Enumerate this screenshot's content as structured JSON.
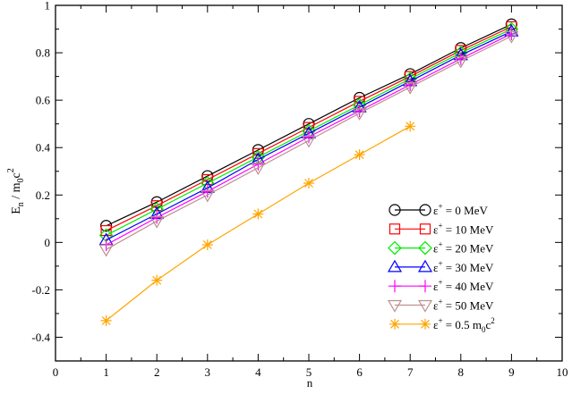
{
  "chart_data": {
    "type": "line",
    "xlabel": "n",
    "ylabel": {
      "main": "E",
      "sub": "n",
      "mid": " / m",
      "sub2": "0",
      "end": "c",
      "sup": "2"
    },
    "xlim": [
      0,
      10
    ],
    "ylim": [
      -0.5,
      1
    ],
    "xticks": [
      0,
      1,
      2,
      3,
      4,
      5,
      6,
      7,
      8,
      9,
      10
    ],
    "yticks": [
      -0.4,
      -0.2,
      0,
      0.2,
      0.4,
      0.6,
      0.8,
      1
    ],
    "xtick_labels": [
      "0",
      "1",
      "2",
      "3",
      "4",
      "5",
      "6",
      "7",
      "8",
      "9",
      "10"
    ],
    "ytick_labels": [
      "-0.4",
      "-0.2",
      "0",
      "0.2",
      "0.4",
      "0.6",
      "0.8",
      "1"
    ],
    "grid": false,
    "legend_position": "bottom-right",
    "series": [
      {
        "name": "= 0 MeV",
        "symbol": "circle",
        "color": "#000000",
        "x": [
          1,
          2,
          3,
          4,
          5,
          6,
          7,
          8,
          9
        ],
        "y": [
          0.07,
          0.17,
          0.28,
          0.39,
          0.5,
          0.61,
          0.71,
          0.82,
          0.92
        ]
      },
      {
        "name": "= 10 MeV",
        "symbol": "square",
        "color": "#ff0000",
        "x": [
          1,
          2,
          3,
          4,
          5,
          6,
          7,
          8,
          9
        ],
        "y": [
          0.05,
          0.155,
          0.265,
          0.375,
          0.485,
          0.595,
          0.7,
          0.81,
          0.91
        ]
      },
      {
        "name": "= 20 MeV",
        "symbol": "diamond",
        "color": "#00ee00",
        "x": [
          1,
          2,
          3,
          4,
          5,
          6,
          7,
          8,
          9
        ],
        "y": [
          0.03,
          0.14,
          0.25,
          0.36,
          0.47,
          0.58,
          0.69,
          0.8,
          0.9
        ]
      },
      {
        "name": "= 30 MeV",
        "symbol": "triangle-up",
        "color": "#0000ff",
        "x": [
          1,
          2,
          3,
          4,
          5,
          6,
          7,
          8,
          9
        ],
        "y": [
          0.01,
          0.12,
          0.23,
          0.35,
          0.46,
          0.57,
          0.68,
          0.79,
          0.89
        ]
      },
      {
        "name": "= 40 MeV",
        "symbol": "plus",
        "color": "#ff00ff",
        "x": [
          1,
          2,
          3,
          4,
          5,
          6,
          7,
          8,
          9
        ],
        "y": [
          -0.01,
          0.105,
          0.215,
          0.33,
          0.445,
          0.555,
          0.665,
          0.775,
          0.88
        ]
      },
      {
        "name": "= 50 MeV",
        "symbol": "triangle-down",
        "color": "#bc8f8f",
        "x": [
          1,
          2,
          3,
          4,
          5,
          6,
          7,
          8,
          9
        ],
        "y": [
          -0.03,
          0.09,
          0.2,
          0.315,
          0.43,
          0.545,
          0.655,
          0.765,
          0.87
        ]
      },
      {
        "name": "= 0.5 m",
        "name_sub": "0",
        "name_end": "c",
        "name_sup": "2",
        "symbol": "star",
        "color": "#ffa500",
        "x": [
          1,
          2,
          3,
          4,
          5,
          6,
          7
        ],
        "y": [
          -0.33,
          -0.16,
          -0.01,
          0.12,
          0.25,
          0.37,
          0.49
        ]
      }
    ],
    "legend_symbol": "ε",
    "legend_symbol_sup": "+"
  }
}
